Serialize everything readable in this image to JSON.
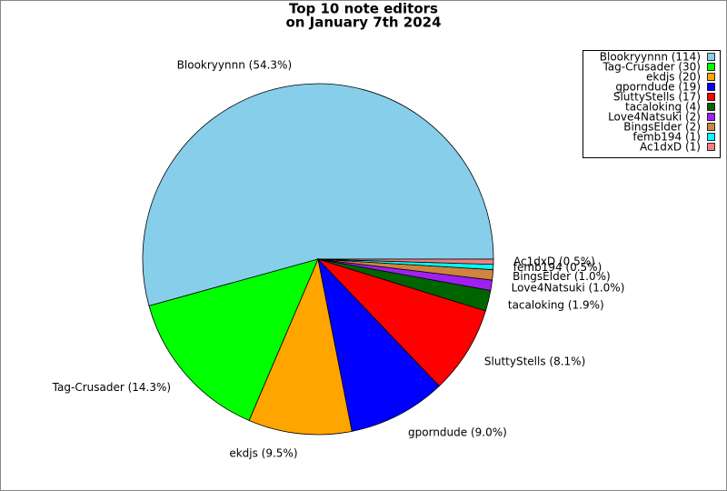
{
  "chart_data": {
    "type": "pie",
    "title": [
      "Top 10 note editors",
      "on January 7th 2024"
    ],
    "categories": [
      "Blookryynnn",
      "Tag-Crusader",
      "ekdjs",
      "gporndude",
      "SluttyStells",
      "tacaloking",
      "Love4Natsuki",
      "BingsElder",
      "femb194",
      "Ac1dxD"
    ],
    "values": [
      114,
      30,
      20,
      19,
      17,
      4,
      2,
      2,
      1,
      1
    ],
    "value_labels": [
      "Blookryynnn (54.3%)",
      "Tag-Crusader (14.3%)",
      "ekdjs (9.5%)",
      "gporndude (9.0%)",
      "SluttyStells (8.1%)",
      "tacaloking (1.9%)",
      "Love4Natsuki (1.0%)",
      "BingsElder (1.0%)",
      "femb194 (0.5%)",
      "Ac1dxD (0.5%)"
    ],
    "legend_labels": [
      "Blookryynnn (114)",
      "Tag-Crusader (30)",
      "ekdjs (20)",
      "gporndude (19)",
      "SluttyStells (17)",
      "tacaloking (4)",
      "Love4Natsuki (2)",
      "BingsElder (2)",
      "femb194 (1)",
      "Ac1dxD (1)"
    ],
    "colors": [
      "#87ceeb",
      "#00ff00",
      "#ffa500",
      "#0000ff",
      "#ff0000",
      "#006400",
      "#a020f0",
      "#cd853f",
      "#00ffff",
      "#f08080"
    ],
    "legend": "upper right"
  }
}
